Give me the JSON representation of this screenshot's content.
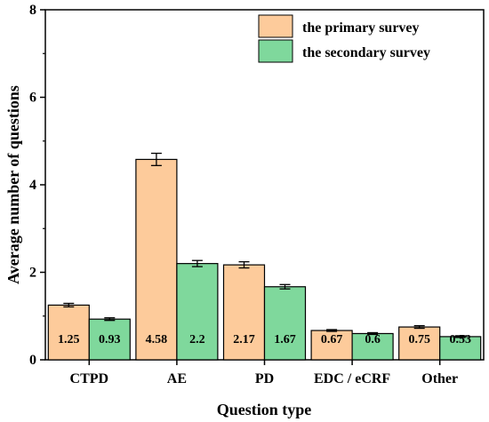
{
  "chart_data": {
    "type": "bar",
    "xlabel": "Question type",
    "ylabel": "Average number of questions",
    "ylim": [
      0,
      8
    ],
    "yticks": [
      "0",
      "2",
      "4",
      "6",
      "8"
    ],
    "categories": [
      "CTPD",
      "AE",
      "PD",
      "EDC / eCRF",
      "Other"
    ],
    "series": [
      {
        "name": "the primary survey",
        "color": "#FDCB9B",
        "values": [
          1.25,
          4.58,
          2.17,
          0.67,
          0.75
        ],
        "labels": [
          "1.25",
          "4.58",
          "2.17",
          "0.67",
          "0.75"
        ],
        "error": [
          0.04,
          0.14,
          0.07,
          0.02,
          0.03
        ]
      },
      {
        "name": "the secondary survey",
        "color": "#7FD89C",
        "values": [
          0.93,
          2.2,
          1.67,
          0.6,
          0.53
        ],
        "labels": [
          "0.93",
          "2.2",
          "1.67",
          "0.6",
          "0.53"
        ],
        "error": [
          0.03,
          0.07,
          0.05,
          0.02,
          0.02
        ]
      }
    ],
    "legend_position": "top-right",
    "grid": false
  }
}
